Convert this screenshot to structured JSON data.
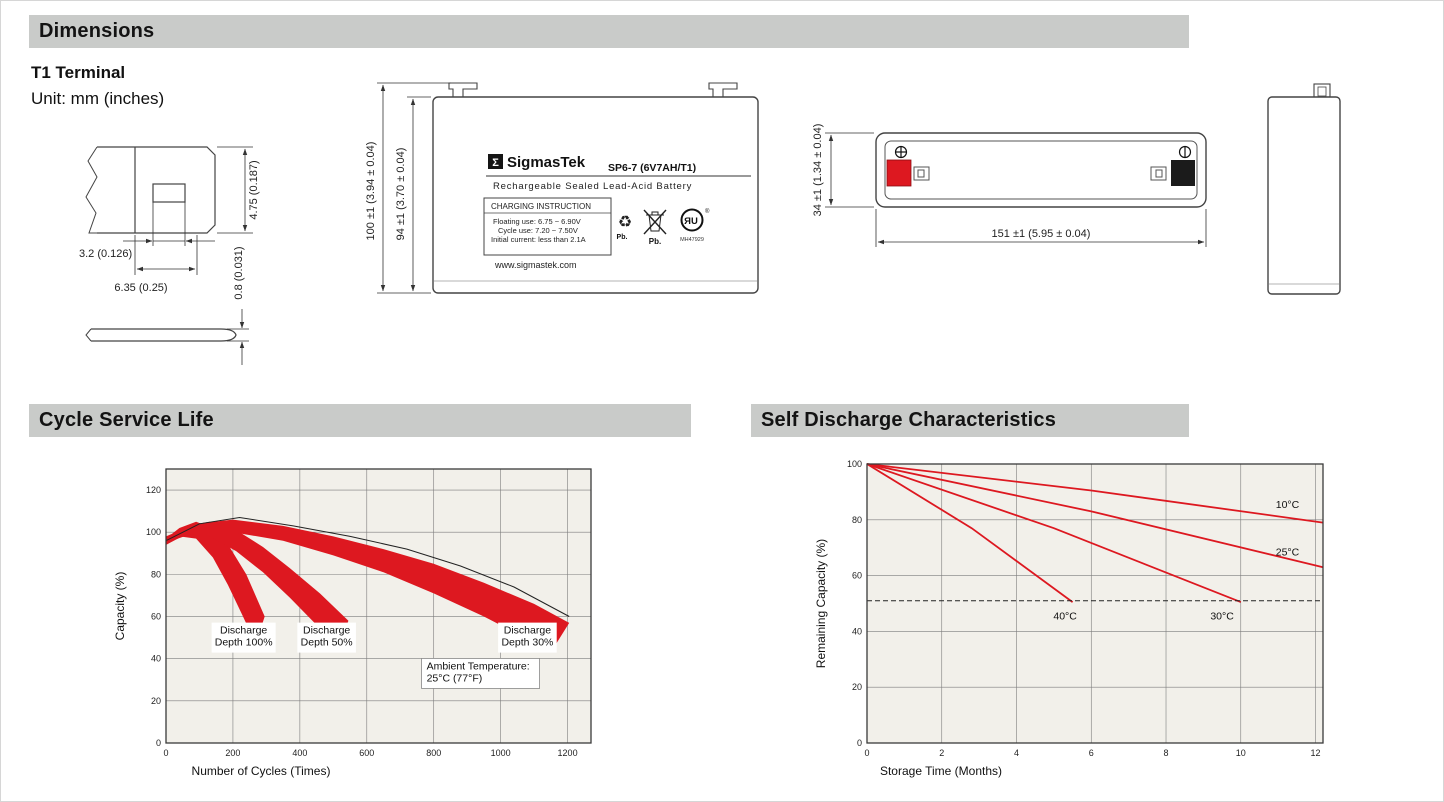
{
  "meta": {
    "accent_red": "#dd1820",
    "header_bg": "#c9cbc9"
  },
  "headers": {
    "dimensions": "Dimensions",
    "cycle_life": "Cycle Service Life",
    "self_discharge": "Self Discharge Characteristics"
  },
  "icons": {
    "recycle_glyph": "♻"
  },
  "dimensions": {
    "terminal_type": "T1 Terminal",
    "unit": "Unit: mm (inches)",
    "terminal_dims": {
      "tab_height": "4.75 (0.187)",
      "slot_width": "3.2 (0.126)",
      "tab_width": "6.35 (0.25)",
      "tab_thickness": "0.8 (0.031)"
    },
    "front_view": {
      "logo_glyph": "Σ",
      "brand": "SigmasTek",
      "model": "SP6-7 (6V7AH/T1)",
      "product_type": "Rechargeable Sealed Lead-Acid Battery",
      "charging_title": "CHARGING INSTRUCTION",
      "charging_line1": "Floating use: 6.75 ~ 6.90V",
      "charging_line2": "Cycle use: 7.20 ~ 7.50V",
      "charging_line3": "Initial current: less than 2.1A",
      "website": "www.sigmastek.com",
      "pb_recycle": "Pb.",
      "pb_bin": "Pb.",
      "ul_mark": "ЯU",
      "ul_reg": "®",
      "ul_code": "MH47929",
      "height_overall": "100 ±1 (3.94 ± 0.04)",
      "height_case": "94 ±1 (3.70 ± 0.04)"
    },
    "top_view": {
      "width": "34 ±1 (1.34 ± 0.04)",
      "length": "151 ±1 (5.95 ± 0.04)"
    }
  },
  "chart_data": [
    {
      "id": "cycle-life",
      "type": "area",
      "title": "Cycle Service Life",
      "xlabel": "Number of Cycles (Times)",
      "ylabel": "Capacity (%)",
      "xlim": [
        0,
        1270
      ],
      "ylim": [
        0,
        130
      ],
      "x_ticks": [
        0,
        200,
        400,
        600,
        800,
        1000,
        1200
      ],
      "y_ticks": [
        0,
        20,
        40,
        60,
        80,
        100,
        120
      ],
      "grid": true,
      "plot_bg": "#f2f0ea",
      "bands": [
        {
          "name": "Discharge Depth 100%",
          "color": "#dd1820",
          "upper": [
            [
              0,
              97
            ],
            [
              40,
              102
            ],
            [
              90,
              105
            ],
            [
              140,
              102
            ],
            [
              190,
              93
            ],
            [
              240,
              80
            ],
            [
              295,
              60
            ]
          ],
          "lower": [
            [
              0,
              94
            ],
            [
              40,
              98
            ],
            [
              90,
              97
            ],
            [
              140,
              88
            ],
            [
              185,
              75
            ],
            [
              230,
              60
            ],
            [
              268,
              47
            ]
          ]
        },
        {
          "name": "Discharge Depth 50%",
          "color": "#dd1820",
          "upper": [
            [
              0,
              97
            ],
            [
              60,
              103
            ],
            [
              130,
              105
            ],
            [
              210,
              101
            ],
            [
              290,
              93
            ],
            [
              370,
              83
            ],
            [
              460,
              71
            ],
            [
              545,
              58
            ]
          ],
          "lower": [
            [
              0,
              94
            ],
            [
              60,
              99
            ],
            [
              130,
              98
            ],
            [
              210,
              91
            ],
            [
              290,
              81
            ],
            [
              370,
              69
            ],
            [
              450,
              56
            ],
            [
              515,
              45
            ]
          ]
        },
        {
          "name": "Discharge Depth 30%",
          "color": "#dd1820",
          "upper": [
            [
              0,
              98
            ],
            [
              90,
              104
            ],
            [
              200,
              106
            ],
            [
              350,
              103
            ],
            [
              500,
              98
            ],
            [
              650,
              92
            ],
            [
              800,
              85
            ],
            [
              950,
              76
            ],
            [
              1100,
              66
            ],
            [
              1205,
              57
            ]
          ],
          "lower": [
            [
              0,
              95
            ],
            [
              90,
              100
            ],
            [
              200,
              100
            ],
            [
              350,
              96
            ],
            [
              500,
              89
            ],
            [
              650,
              81
            ],
            [
              800,
              71
            ],
            [
              950,
              60
            ],
            [
              1060,
              51
            ],
            [
              1150,
              43
            ]
          ]
        }
      ],
      "lines": [
        {
          "name": "envelope",
          "color": "#222222",
          "width": 1,
          "points": [
            [
              0,
              96
            ],
            [
              100,
              104
            ],
            [
              220,
              107
            ],
            [
              380,
              103
            ],
            [
              550,
              98
            ],
            [
              720,
              92
            ],
            [
              880,
              84
            ],
            [
              1040,
              74
            ],
            [
              1205,
              60
            ]
          ]
        }
      ],
      "annotations": [
        {
          "x": 232,
          "y": 50,
          "lines": [
            "Discharge",
            "Depth 100%"
          ],
          "bg": "#ffffff"
        },
        {
          "x": 480,
          "y": 50,
          "lines": [
            "Discharge",
            "Depth 50%"
          ],
          "bg": "#ffffff"
        },
        {
          "x": 1080,
          "y": 50,
          "lines": [
            "Discharge",
            "Depth 30%"
          ],
          "bg": "#ffffff"
        },
        {
          "x": 940,
          "y": 33,
          "lines": [
            "Ambient Temperature:",
            "25°C (77°F)"
          ],
          "bg": "#ffffff",
          "border": "#888888",
          "align": "left"
        }
      ]
    },
    {
      "id": "self-discharge",
      "type": "line",
      "title": "Self Discharge Characteristics",
      "xlabel": "Storage Time (Months)",
      "ylabel": "Remaining Capacity (%)",
      "xlim": [
        0,
        12.2
      ],
      "ylim": [
        0,
        100
      ],
      "x_ticks": [
        0,
        2,
        4,
        6,
        8,
        10,
        12
      ],
      "y_ticks": [
        0,
        20,
        40,
        60,
        80,
        100
      ],
      "grid": true,
      "plot_bg": "#f2f0ea",
      "lines": [
        {
          "name": "10°C",
          "color": "#dd1820",
          "width": 1.8,
          "points": [
            [
              0,
              100
            ],
            [
              6,
              90.5
            ],
            [
              12.2,
              79
            ]
          ]
        },
        {
          "name": "25°C",
          "color": "#dd1820",
          "width": 1.8,
          "points": [
            [
              0,
              100
            ],
            [
              6,
              83
            ],
            [
              12.2,
              63
            ]
          ]
        },
        {
          "name": "30°C",
          "color": "#dd1820",
          "width": 1.8,
          "points": [
            [
              0,
              100
            ],
            [
              5,
              77
            ],
            [
              10,
              50.5
            ]
          ]
        },
        {
          "name": "40°C",
          "color": "#dd1820",
          "width": 1.8,
          "points": [
            [
              0,
              100
            ],
            [
              2.8,
              77
            ],
            [
              5.5,
              50.5
            ]
          ]
        },
        {
          "name": "capacity-threshold",
          "color": "#222222",
          "width": 1,
          "dash": "5,3",
          "points": [
            [
              0,
              51
            ],
            [
              12.2,
              51
            ]
          ]
        }
      ],
      "annotations": [
        {
          "x": 11.25,
          "y": 85,
          "lines": [
            "10°C"
          ]
        },
        {
          "x": 11.25,
          "y": 68,
          "lines": [
            "25°C"
          ]
        },
        {
          "x": 9.5,
          "y": 45,
          "lines": [
            "30°C"
          ]
        },
        {
          "x": 5.3,
          "y": 45,
          "lines": [
            "40°C"
          ]
        }
      ]
    }
  ]
}
